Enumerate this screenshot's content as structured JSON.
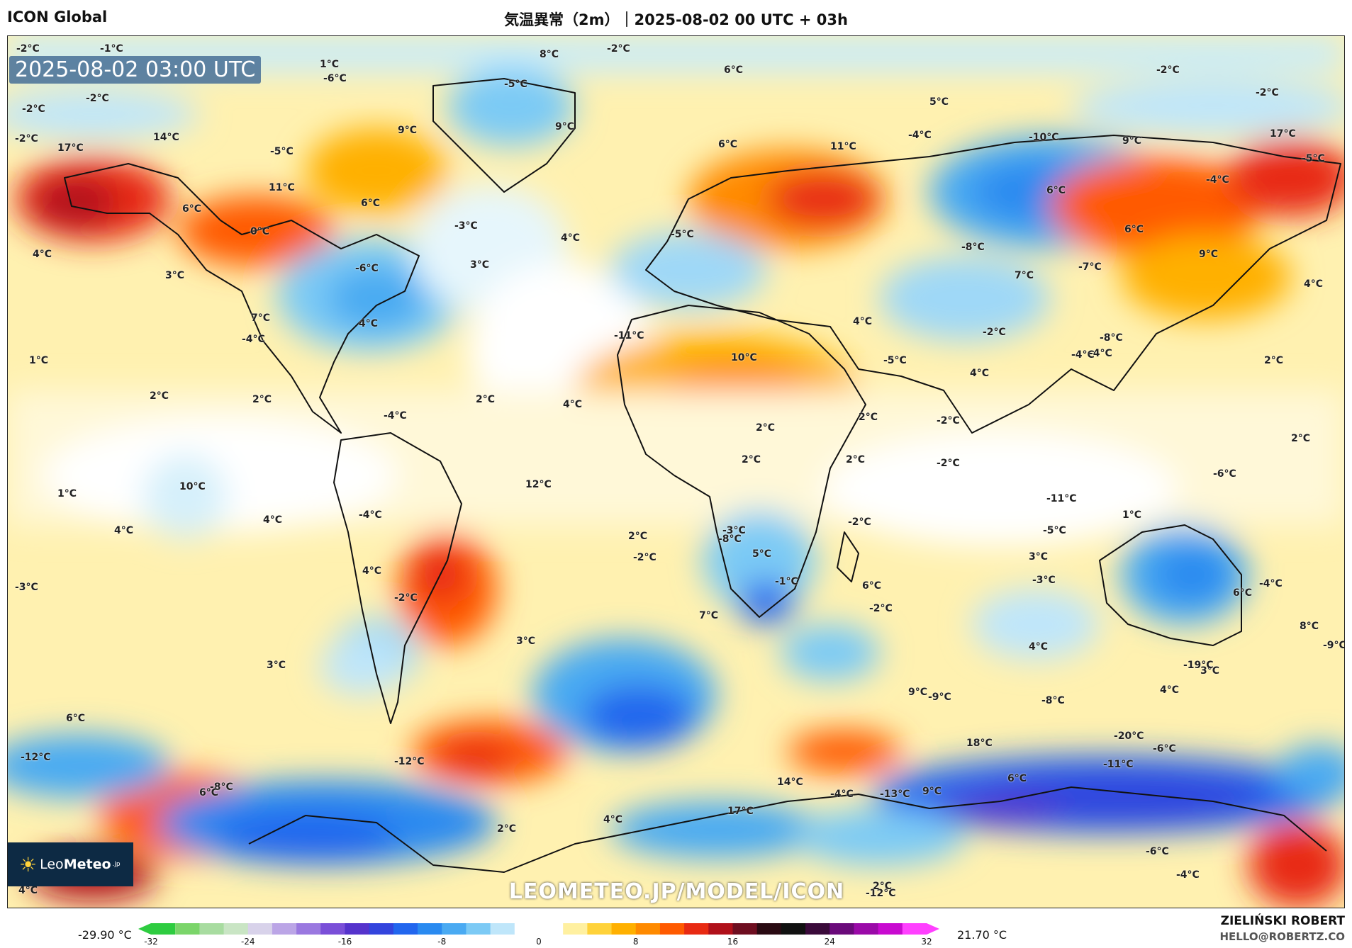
{
  "header": {
    "model": "ICON Global",
    "title": "気温異常（2m）｜2025-08-02 00 UTC + 03h"
  },
  "map": {
    "timestamp": "2025-08-02 03:00 UTC",
    "watermark": "LEOMETEO.JP/MODEL/ICON",
    "labels": [
      {
        "text": "-2°C",
        "kind": "cold"
      },
      {
        "text": "-1°C",
        "kind": "cold"
      },
      {
        "text": "1°C",
        "kind": "warm"
      },
      {
        "text": "-2°C",
        "kind": "cold"
      },
      {
        "text": "8°C",
        "kind": "warm"
      },
      {
        "text": "-2°C",
        "kind": "cold"
      },
      {
        "text": "-6°C",
        "kind": "cold"
      },
      {
        "text": "-5°C",
        "kind": "cold"
      },
      {
        "text": "6°C",
        "kind": "warm"
      },
      {
        "text": "-2°C",
        "kind": "cold"
      },
      {
        "text": "-2°C",
        "kind": "cold"
      },
      {
        "text": "-2°C",
        "kind": "cold"
      },
      {
        "text": "-2°C",
        "kind": "cold"
      },
      {
        "text": "5°C",
        "kind": "warm"
      },
      {
        "text": "14°C",
        "kind": "hot"
      },
      {
        "text": "17°C",
        "kind": "hot"
      },
      {
        "text": "9°C",
        "kind": "warm"
      },
      {
        "text": "9°C",
        "kind": "warm"
      },
      {
        "text": "-4°C",
        "kind": "cold"
      },
      {
        "text": "-10°C",
        "kind": "cold"
      },
      {
        "text": "9°C",
        "kind": "warm"
      },
      {
        "text": "17°C",
        "kind": "hot"
      },
      {
        "text": "-5°C",
        "kind": "cold"
      },
      {
        "text": "-5°C",
        "kind": "cold"
      },
      {
        "text": "6°C",
        "kind": "warm"
      },
      {
        "text": "11°C",
        "kind": "hot"
      },
      {
        "text": "11°C",
        "kind": "hot"
      },
      {
        "text": "6°C",
        "kind": "warm"
      },
      {
        "text": "-4°C",
        "kind": "cold"
      },
      {
        "text": "6°C",
        "kind": "warm"
      },
      {
        "text": "6°C",
        "kind": "warm"
      },
      {
        "text": "-3°C",
        "kind": "cold"
      },
      {
        "text": "0°C",
        "kind": "neutral"
      },
      {
        "text": "4°C",
        "kind": "warm"
      },
      {
        "text": "-5°C",
        "kind": "cold"
      },
      {
        "text": "3°C",
        "kind": "warm"
      },
      {
        "text": "4°C",
        "kind": "warm"
      },
      {
        "text": "-8°C",
        "kind": "cold"
      },
      {
        "text": "-6°C",
        "kind": "cold"
      },
      {
        "text": "9°C",
        "kind": "warm"
      },
      {
        "text": "6°C",
        "kind": "warm"
      },
      {
        "text": "-7°C",
        "kind": "cold"
      },
      {
        "text": "3°C",
        "kind": "warm"
      },
      {
        "text": "7°C",
        "kind": "warm"
      },
      {
        "text": "4°C",
        "kind": "warm"
      },
      {
        "text": "4°C",
        "kind": "warm"
      },
      {
        "text": "7°C",
        "kind": "warm"
      },
      {
        "text": "4°C",
        "kind": "warm"
      },
      {
        "text": "-4°C",
        "kind": "cold"
      },
      {
        "text": "-8°C",
        "kind": "cold"
      },
      {
        "text": "-11°C",
        "kind": "cold"
      },
      {
        "text": "-2°C",
        "kind": "cold"
      },
      {
        "text": "-4°C",
        "kind": "cold"
      },
      {
        "text": "1°C",
        "kind": "warm"
      },
      {
        "text": "-4°C",
        "kind": "cold"
      },
      {
        "text": "10°C",
        "kind": "hot"
      },
      {
        "text": "-5°C",
        "kind": "cold"
      },
      {
        "text": "4°C",
        "kind": "warm"
      },
      {
        "text": "2°C",
        "kind": "warm"
      },
      {
        "text": "2°C",
        "kind": "warm"
      },
      {
        "text": "2°C",
        "kind": "warm"
      },
      {
        "text": "2°C",
        "kind": "warm"
      },
      {
        "text": "4°C",
        "kind": "warm"
      },
      {
        "text": "2°C",
        "kind": "warm"
      },
      {
        "text": "2°C",
        "kind": "warm"
      },
      {
        "text": "-2°C",
        "kind": "cold"
      },
      {
        "text": "2°C",
        "kind": "warm"
      },
      {
        "text": "-4°C",
        "kind": "cold"
      },
      {
        "text": "-6°C",
        "kind": "cold"
      },
      {
        "text": "2°C",
        "kind": "warm"
      },
      {
        "text": "2°C",
        "kind": "warm"
      },
      {
        "text": "-2°C",
        "kind": "cold"
      },
      {
        "text": "-3°C",
        "kind": "cold"
      },
      {
        "text": "-5°C",
        "kind": "cold"
      },
      {
        "text": "-4°C",
        "kind": "cold"
      },
      {
        "text": "1°C",
        "kind": "warm"
      },
      {
        "text": "12°C",
        "kind": "hot"
      },
      {
        "text": "2°C",
        "kind": "warm"
      },
      {
        "text": "10°C",
        "kind": "hot"
      },
      {
        "text": "-2°C",
        "kind": "cold"
      },
      {
        "text": "-11°C",
        "kind": "cold"
      },
      {
        "text": "4°C",
        "kind": "warm"
      },
      {
        "text": "-8°C",
        "kind": "cold"
      },
      {
        "text": "5°C",
        "kind": "warm"
      },
      {
        "text": "1°C",
        "kind": "warm"
      },
      {
        "text": "3°C",
        "kind": "warm"
      },
      {
        "text": "4°C",
        "kind": "warm"
      },
      {
        "text": "-2°C",
        "kind": "cold"
      },
      {
        "text": "-1°C",
        "kind": "cold"
      },
      {
        "text": "-4°C",
        "kind": "cold"
      },
      {
        "text": "-3°C",
        "kind": "cold"
      },
      {
        "text": "6°C",
        "kind": "warm"
      },
      {
        "text": "-2°C",
        "kind": "cold"
      },
      {
        "text": "-2°C",
        "kind": "cold"
      },
      {
        "text": "8°C",
        "kind": "warm"
      },
      {
        "text": "6°C",
        "kind": "warm"
      },
      {
        "text": "4°C",
        "kind": "warm"
      },
      {
        "text": "-3°C",
        "kind": "cold"
      },
      {
        "text": "4°C",
        "kind": "warm"
      },
      {
        "text": "3°C",
        "kind": "warm"
      },
      {
        "text": "3°C",
        "kind": "warm"
      },
      {
        "text": "-9°C",
        "kind": "cold"
      },
      {
        "text": "7°C",
        "kind": "warm"
      },
      {
        "text": "3°C",
        "kind": "warm"
      },
      {
        "text": "4°C",
        "kind": "warm"
      },
      {
        "text": "-8°C",
        "kind": "cold"
      },
      {
        "text": "6°C",
        "kind": "warm"
      },
      {
        "text": "9°C",
        "kind": "warm"
      },
      {
        "text": "-9°C",
        "kind": "cold"
      },
      {
        "text": "-19°C",
        "kind": "cold"
      },
      {
        "text": "-20°C",
        "kind": "cold"
      },
      {
        "text": "18°C",
        "kind": "hot"
      },
      {
        "text": "6°C",
        "kind": "warm"
      },
      {
        "text": "-8°C",
        "kind": "cold"
      },
      {
        "text": "-12°C",
        "kind": "cold"
      },
      {
        "text": "-11°C",
        "kind": "cold"
      },
      {
        "text": "-6°C",
        "kind": "cold"
      },
      {
        "text": "-12°C",
        "kind": "cold"
      },
      {
        "text": "-13°C",
        "kind": "cold"
      },
      {
        "text": "9°C",
        "kind": "warm"
      },
      {
        "text": "4°C",
        "kind": "warm"
      },
      {
        "text": "2°C",
        "kind": "warm"
      },
      {
        "text": "6°C",
        "kind": "warm"
      },
      {
        "text": "17°C",
        "kind": "hot"
      },
      {
        "text": "14°C",
        "kind": "hot"
      },
      {
        "text": "-4°C",
        "kind": "cold"
      },
      {
        "text": "-6°C",
        "kind": "cold"
      },
      {
        "text": "-12°C",
        "kind": "cold"
      },
      {
        "text": "2°C",
        "kind": "warm"
      },
      {
        "text": "-4°C",
        "kind": "cold"
      },
      {
        "text": "4°C",
        "kind": "warm"
      }
    ]
  },
  "logo": {
    "name_light": "Leo",
    "name_bold": "Meteo",
    "suffix": ".jp"
  },
  "colorbar": {
    "min_label": "-29.90 °C",
    "max_label": "21.70 °C",
    "ticks": [
      "-32",
      "-24",
      "-16",
      "-8",
      "0",
      "8",
      "16",
      "24",
      "32"
    ],
    "range": [
      -32,
      32
    ],
    "colors": [
      "#2ecc40",
      "#7bd56a",
      "#a8dca0",
      "#c9e5c4",
      "#d8d2ea",
      "#bba5e6",
      "#9a78e0",
      "#7a4fd8",
      "#5533cc",
      "#3344dd",
      "#2266ee",
      "#2a8af0",
      "#4aaaf2",
      "#7ccaf5",
      "#bfe6fa",
      "#ffffff",
      "#ffffff",
      "#fff0a0",
      "#ffd23a",
      "#ffb000",
      "#ff8a00",
      "#ff5a00",
      "#e82a12",
      "#b0101a",
      "#6e0e20",
      "#2a0a12",
      "#111111",
      "#3a0a3a",
      "#6a0a7a",
      "#9a0aa8",
      "#c80ad0",
      "#ff40ff"
    ]
  },
  "credit": {
    "author": "ZIELIŃSKI ROBERT",
    "email": "HELLO@ROBERTZ.CO"
  }
}
